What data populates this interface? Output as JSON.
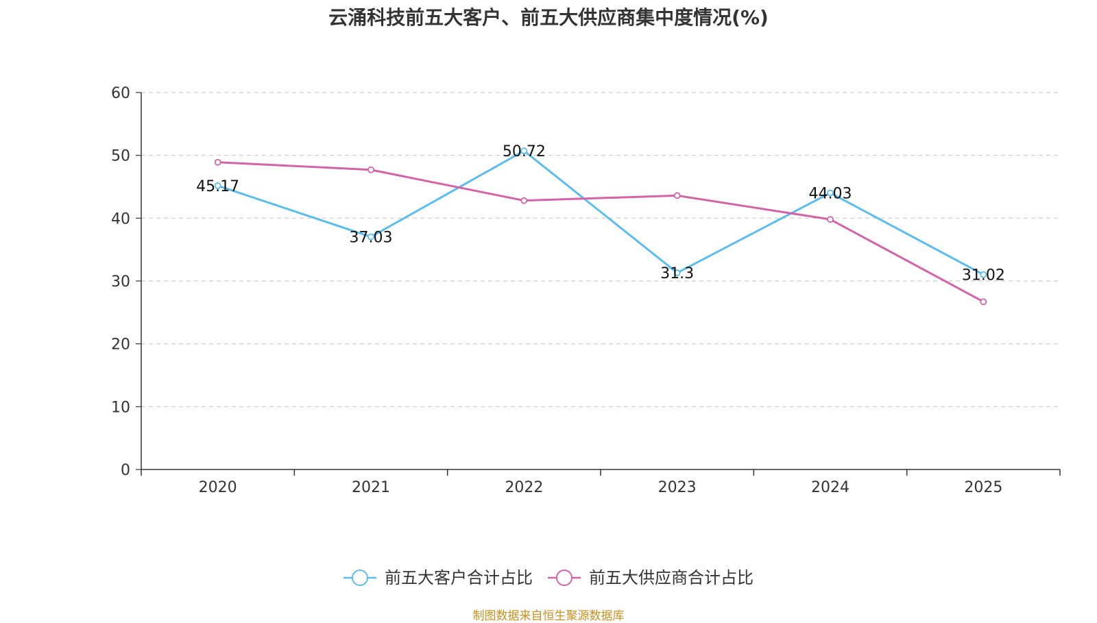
{
  "chart_data": {
    "type": "line",
    "title": "云涌科技前五大客户、前五大供应商集中度情况(%)",
    "categories": [
      "2020",
      "2021",
      "2022",
      "2023",
      "2024",
      "2025"
    ],
    "ylim": [
      0,
      60
    ],
    "yticks": [
      0,
      10,
      20,
      30,
      40,
      50,
      60
    ],
    "grid": true,
    "legend_position": "bottom",
    "series": [
      {
        "name": "前五大客户合计占比",
        "color": "#5bbcf0",
        "values": [
          45.17,
          37.03,
          50.72,
          31.3,
          44.03,
          31.02
        ],
        "labels": [
          "45.17",
          "37.03",
          "50.72",
          "31.3",
          "44.03",
          "31.02"
        ]
      },
      {
        "name": "前五大供应商合计占比",
        "color": "#d462a9",
        "values": [
          48.9,
          47.7,
          42.8,
          43.6,
          39.8,
          26.7
        ],
        "labels": []
      }
    ]
  },
  "source": "制图数据来自恒生聚源数据库"
}
